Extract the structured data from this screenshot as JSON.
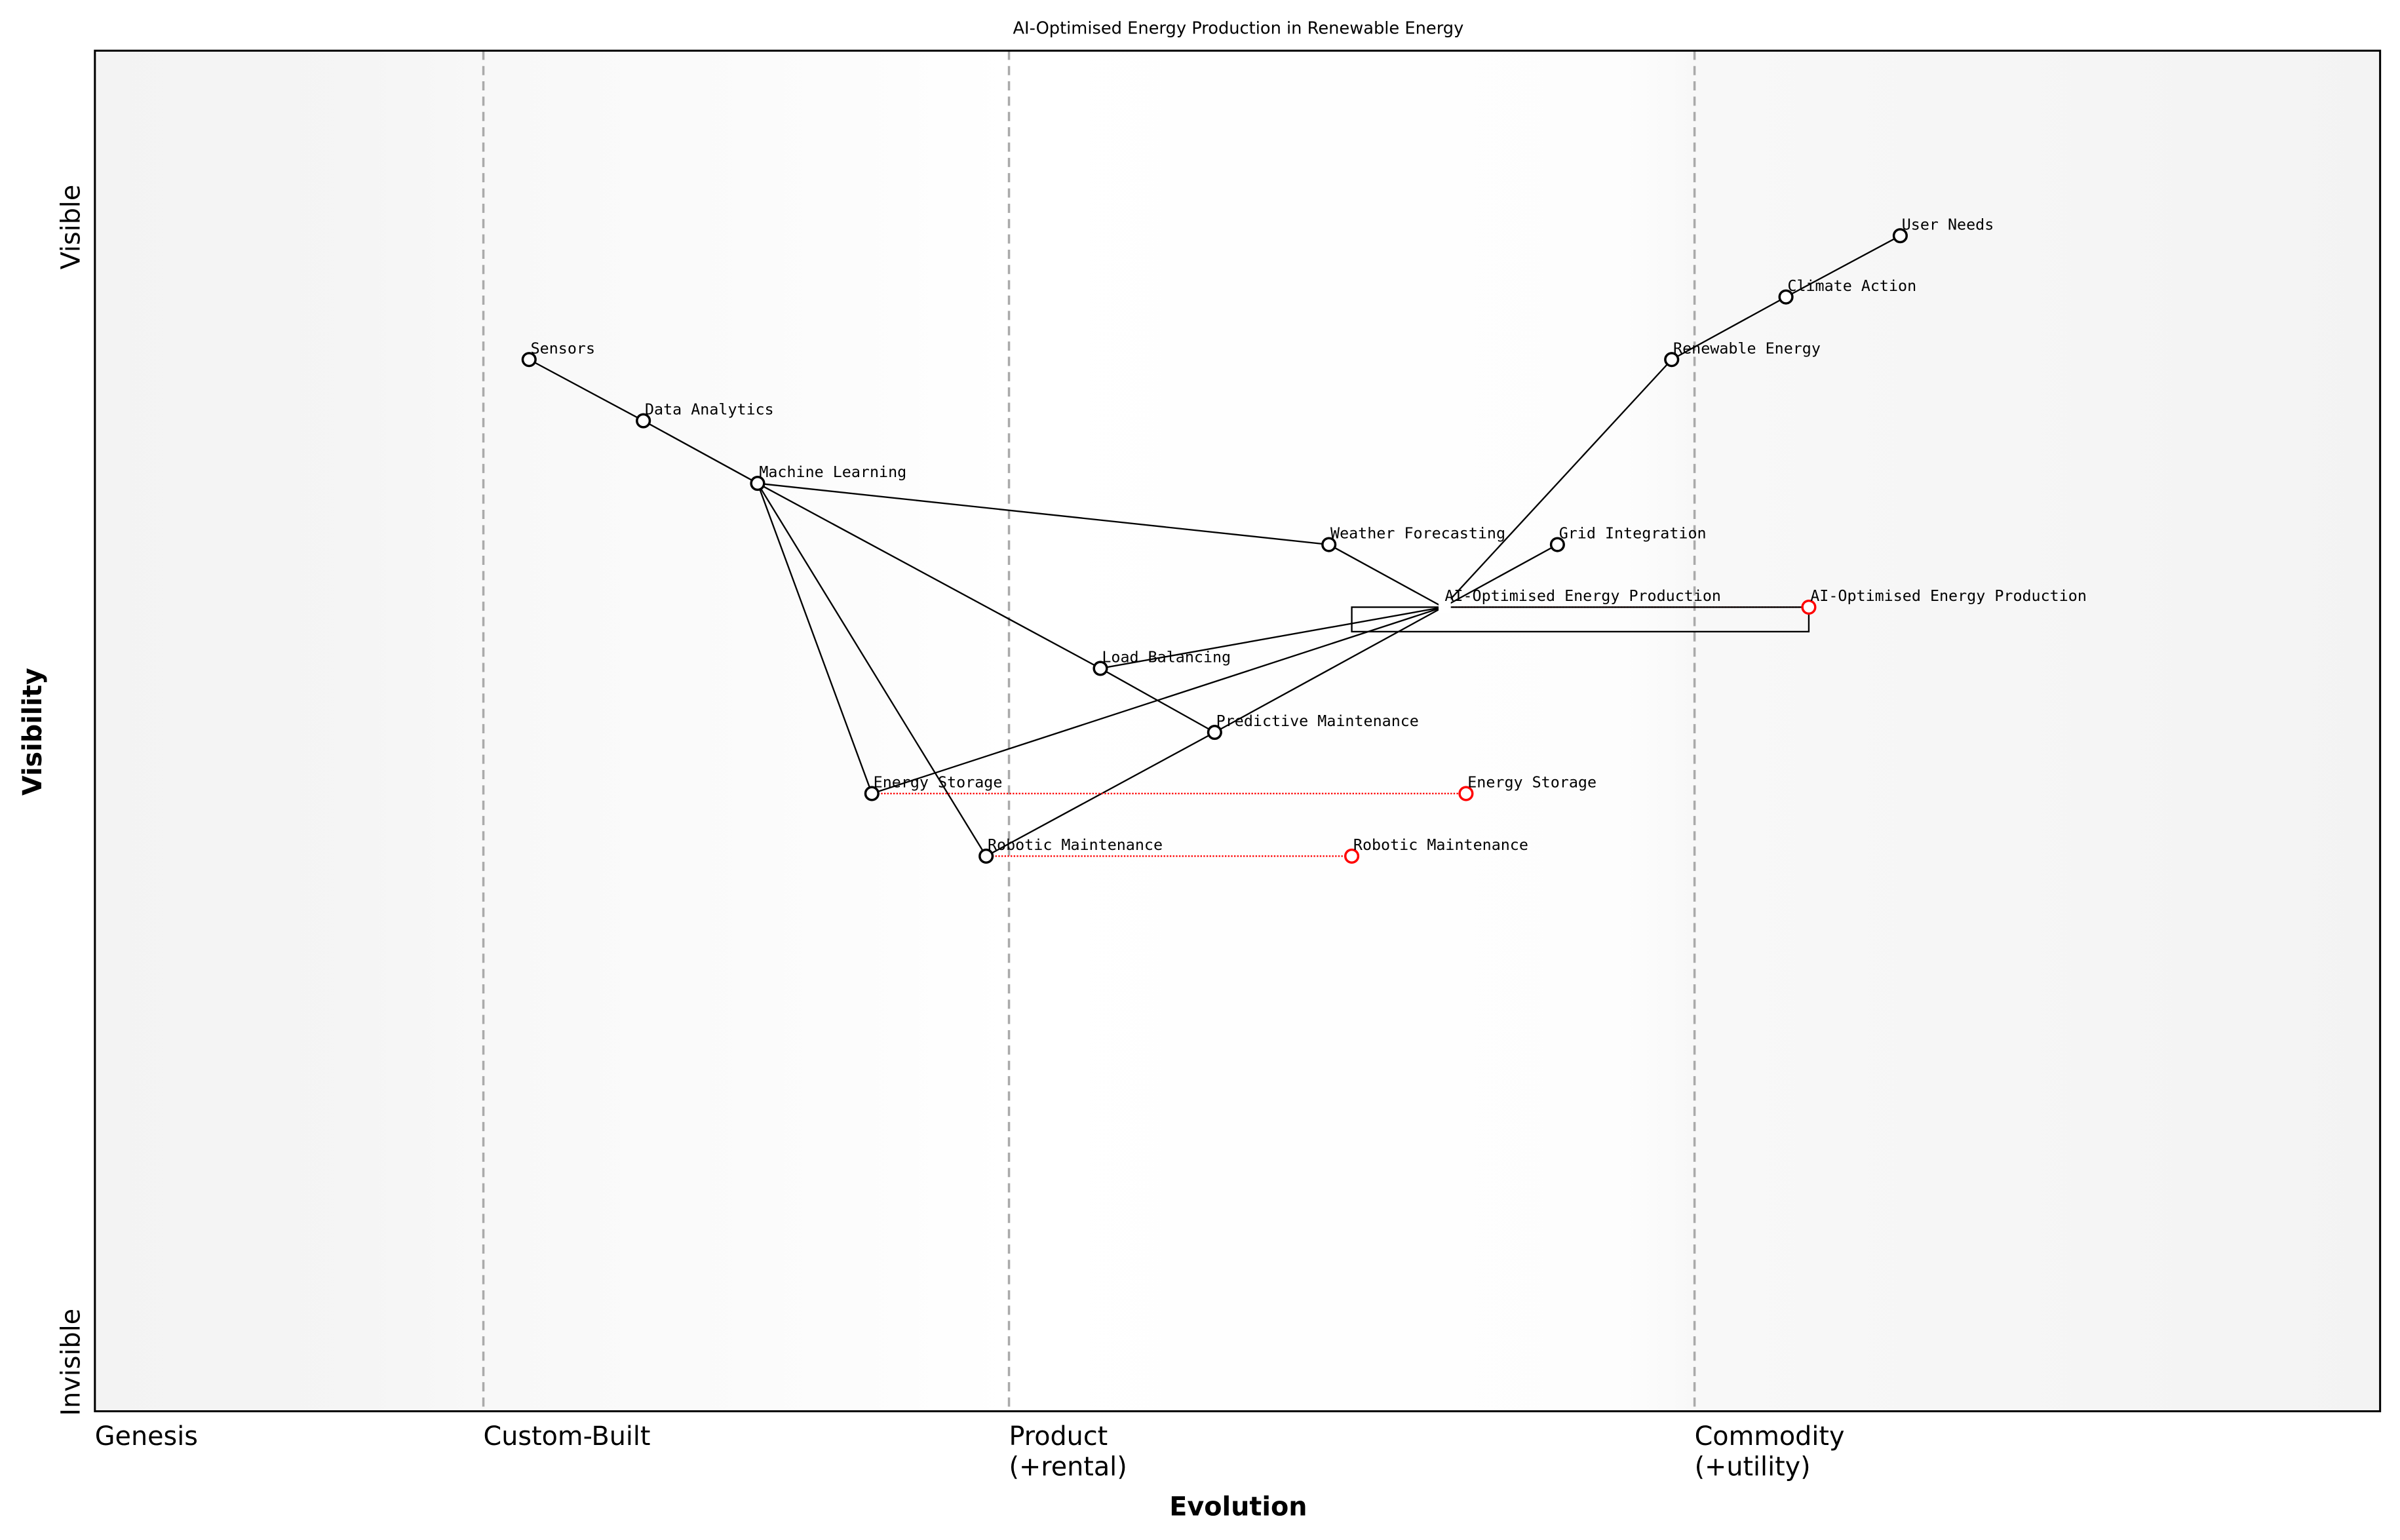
{
  "chart_data": {
    "type": "scatter",
    "subtype": "wardley-map",
    "title": "AI-Optimised Energy Production in Renewable Energy",
    "xlabel": "Evolution",
    "ylabel": "Visibility",
    "xlim": [
      0,
      1
    ],
    "ylim": [
      0,
      1
    ],
    "y_top_label": "Visible",
    "y_bottom_label": "Invisible",
    "stages": [
      {
        "label": "Genesis",
        "x": 0
      },
      {
        "label": "Custom-Built",
        "x": 0.17
      },
      {
        "label": "Product",
        "label2": "(+rental)",
        "x": 0.4
      },
      {
        "label": "Commodity",
        "label2": "(+utility)",
        "x": 0.7
      }
    ],
    "components": [
      {
        "name": "User Needs",
        "evolution": 0.79,
        "visibility": 0.864
      },
      {
        "name": "Climate Action",
        "evolution": 0.74,
        "visibility": 0.819
      },
      {
        "name": "Renewable Energy",
        "evolution": 0.69,
        "visibility": 0.773
      },
      {
        "name": "Sensors",
        "evolution": 0.19,
        "visibility": 0.773
      },
      {
        "name": "Data Analytics",
        "evolution": 0.24,
        "visibility": 0.728
      },
      {
        "name": "Machine Learning",
        "evolution": 0.29,
        "visibility": 0.682
      },
      {
        "name": "Weather Forecasting",
        "evolution": 0.54,
        "visibility": 0.637
      },
      {
        "name": "Grid Integration",
        "evolution": 0.64,
        "visibility": 0.637
      },
      {
        "name": "AI-Optimised Energy Production",
        "evolution": 0.59,
        "visibility": 0.591,
        "hidden_marker": true
      },
      {
        "name": "Load Balancing",
        "evolution": 0.44,
        "visibility": 0.546
      },
      {
        "name": "Predictive Maintenance",
        "evolution": 0.49,
        "visibility": 0.499
      },
      {
        "name": "Energy Storage",
        "evolution": 0.34,
        "visibility": 0.454
      },
      {
        "name": "Robotic Maintenance",
        "evolution": 0.39,
        "visibility": 0.408
      }
    ],
    "evolved": [
      {
        "name": "AI-Optimised Energy Production",
        "from": "AI-Optimised Energy Production",
        "evolution": 0.75,
        "visibility": 0.591
      },
      {
        "name": "Energy Storage",
        "from": "Energy Storage",
        "evolution": 0.6,
        "visibility": 0.454
      },
      {
        "name": "Robotic Maintenance",
        "from": "Robotic Maintenance",
        "evolution": 0.55,
        "visibility": 0.408
      }
    ],
    "links": [
      [
        "User Needs",
        "Climate Action"
      ],
      [
        "Climate Action",
        "Renewable Energy"
      ],
      [
        "Renewable Energy",
        "AI-Optimised Energy Production"
      ],
      [
        "Sensors",
        "Data Analytics"
      ],
      [
        "Data Analytics",
        "Machine Learning"
      ],
      [
        "Machine Learning",
        "Weather Forecasting"
      ],
      [
        "Machine Learning",
        "Load Balancing"
      ],
      [
        "Load Balancing",
        "Predictive Maintenance"
      ],
      [
        "Machine Learning",
        "Energy Storage"
      ],
      [
        "Machine Learning",
        "Robotic Maintenance"
      ],
      [
        "Weather Forecasting",
        "AI-Optimised Energy Production"
      ],
      [
        "Grid Integration",
        "AI-Optimised Energy Production"
      ],
      [
        "Load Balancing",
        "AI-Optimised Energy Production"
      ],
      [
        "Energy Storage",
        "AI-Optimised Energy Production"
      ],
      [
        "Robotic Maintenance",
        "Predictive Maintenance"
      ],
      [
        "Predictive Maintenance",
        "AI-Optimised Energy Production"
      ]
    ],
    "pipelines": [
      {
        "component": "AI-Optimised Energy Production",
        "evolution_start": 0.55,
        "evolution_end": 0.75,
        "visibility": 0.591
      }
    ],
    "colors": {
      "component": "#000000",
      "evolved": "#ff0000",
      "stage_line": "#aaaaaa",
      "band_dark": "#f3f3f3",
      "band_light": "#ffffff"
    },
    "grid": false
  }
}
